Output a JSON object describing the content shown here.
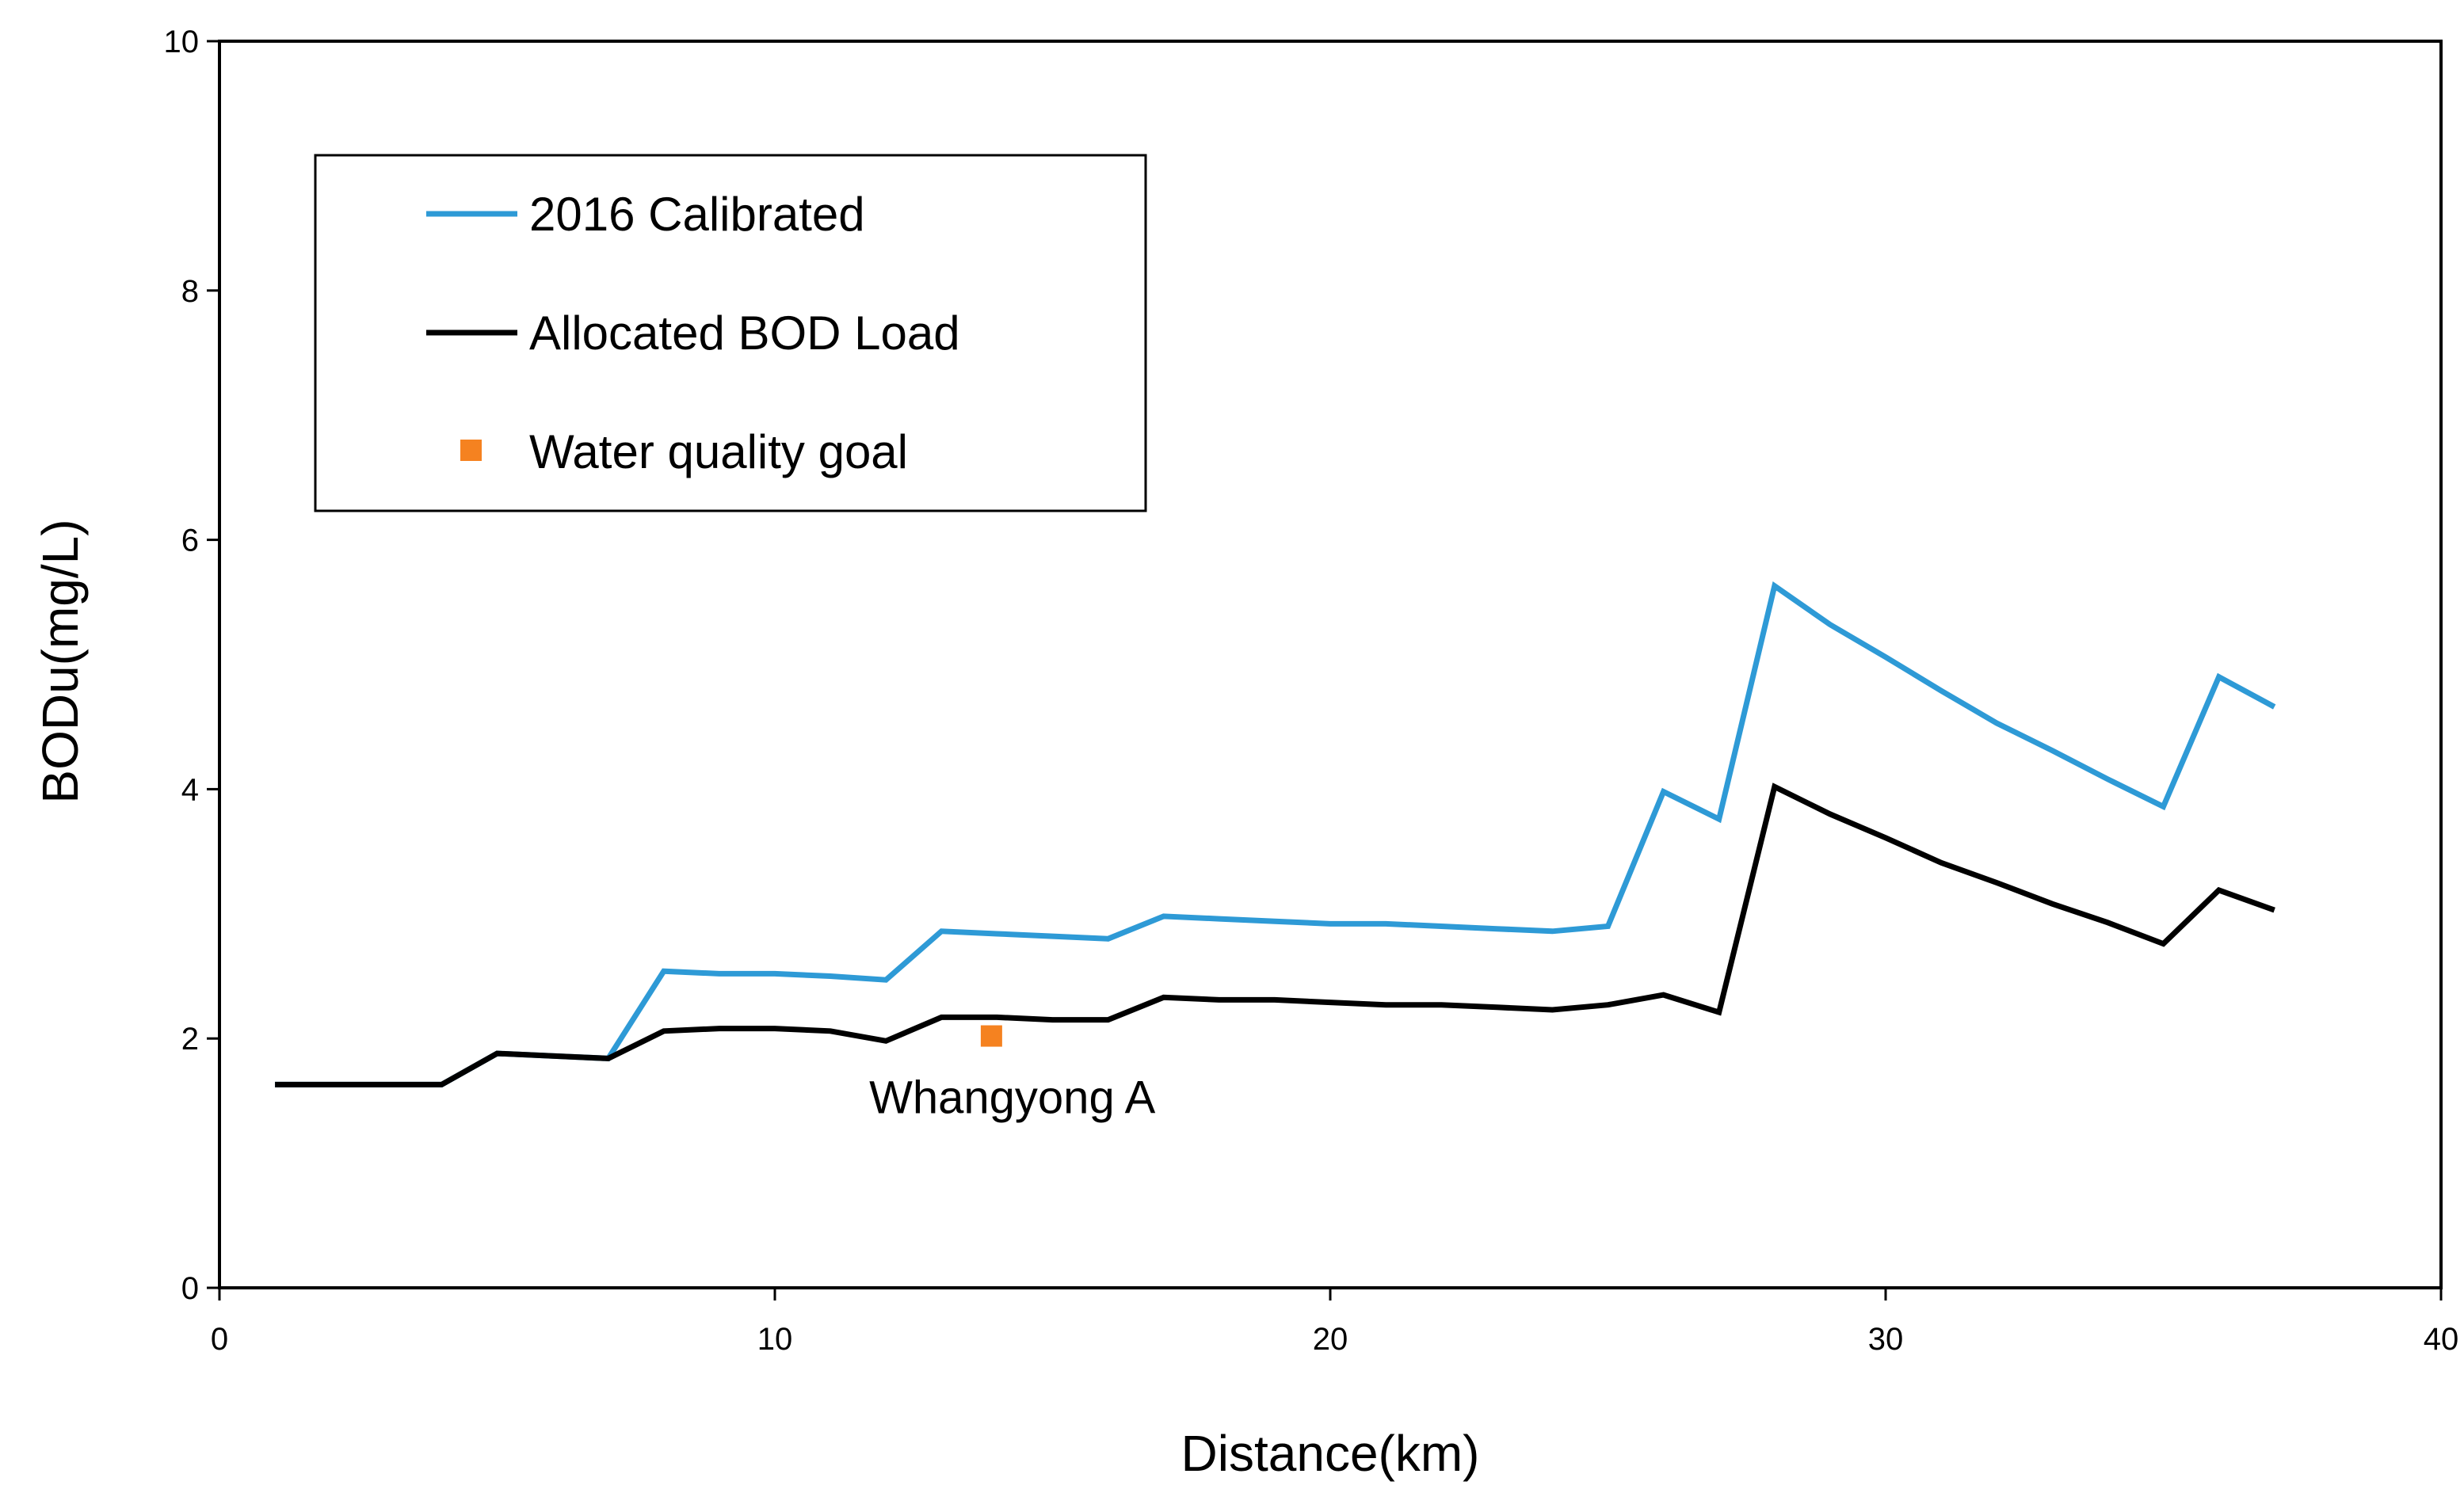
{
  "chart_data": {
    "type": "line",
    "title": "",
    "xlabel": "Distance(km)",
    "ylabel": "BODu(mg/L)",
    "xlim": [
      0,
      40
    ],
    "ylim": [
      0,
      10
    ],
    "xticks": [
      0,
      10,
      20,
      30,
      40
    ],
    "yticks": [
      0,
      2,
      4,
      6,
      8,
      10
    ],
    "xtick_labels": [
      "0",
      "10",
      "20",
      "30",
      "40"
    ],
    "ytick_labels": [
      "0",
      "2",
      "4",
      "6",
      "8",
      "10"
    ],
    "grid": false,
    "legend_position": "top-left",
    "series": [
      {
        "name": "2016 Calibrated",
        "kind": "line",
        "color": "#2e9ad6",
        "x": [
          1,
          2,
          3,
          4,
          5,
          6,
          7,
          8,
          9,
          10,
          11,
          12,
          13,
          14,
          15,
          16,
          17,
          18,
          19,
          20,
          21,
          22,
          23,
          24,
          25,
          26,
          27,
          28,
          29,
          30,
          31,
          32,
          33,
          34,
          35,
          36,
          37
        ],
        "y": [
          1.63,
          1.63,
          1.63,
          1.63,
          1.88,
          1.86,
          1.84,
          2.54,
          2.52,
          2.52,
          2.5,
          2.47,
          2.86,
          2.84,
          2.82,
          2.8,
          2.98,
          2.96,
          2.94,
          2.92,
          2.92,
          2.9,
          2.88,
          2.86,
          2.9,
          3.98,
          3.76,
          5.63,
          5.32,
          5.06,
          4.79,
          4.53,
          4.31,
          4.08,
          3.86,
          4.9,
          4.66
        ]
      },
      {
        "name": "Allocated BOD Load",
        "kind": "line",
        "color": "#000000",
        "x": [
          1,
          2,
          3,
          4,
          5,
          6,
          7,
          8,
          9,
          10,
          11,
          12,
          13,
          14,
          15,
          16,
          17,
          18,
          19,
          20,
          21,
          22,
          23,
          24,
          25,
          26,
          27,
          28,
          29,
          30,
          31,
          32,
          33,
          34,
          35,
          36,
          37
        ],
        "y": [
          1.63,
          1.63,
          1.63,
          1.63,
          1.88,
          1.86,
          1.84,
          2.06,
          2.08,
          2.08,
          2.06,
          1.98,
          2.17,
          2.17,
          2.15,
          2.15,
          2.33,
          2.31,
          2.31,
          2.29,
          2.27,
          2.27,
          2.25,
          2.23,
          2.27,
          2.35,
          2.21,
          4.02,
          3.8,
          3.61,
          3.41,
          3.25,
          3.08,
          2.93,
          2.76,
          3.19,
          3.03
        ]
      },
      {
        "name": "Water quality goal",
        "kind": "scatter",
        "marker": "square",
        "color": "#f58220",
        "x": [
          13.9
        ],
        "y": [
          2.02
        ]
      }
    ],
    "annotations": [
      {
        "text": "Whangyong A",
        "x": 11.7,
        "y": 1.4
      }
    ]
  }
}
